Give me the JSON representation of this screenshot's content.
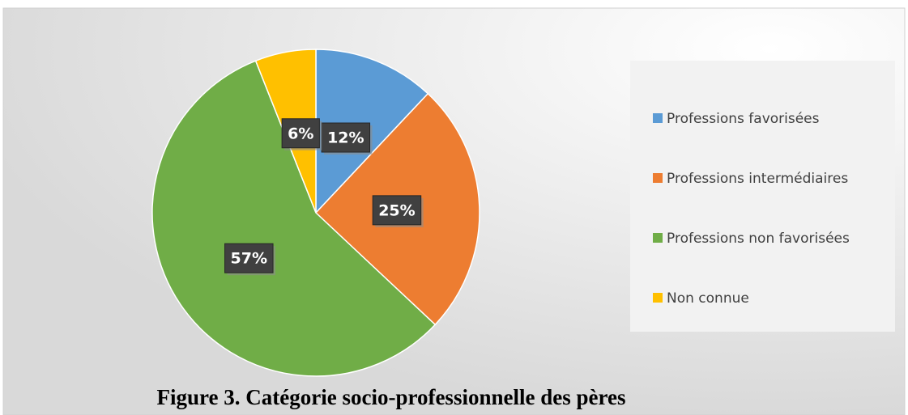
{
  "chart_data": {
    "type": "pie",
    "title": "Figure 3. Catégorie socio-professionnelle des pères",
    "categories": [
      "Professions favorisées",
      "Professions intermédiaires",
      "Professions non favorisées",
      "Non connue"
    ],
    "values": [
      12,
      25,
      57,
      6
    ],
    "value_labels": [
      "12%",
      "25%",
      "57%",
      "6%"
    ],
    "colors": [
      "#5b9bd5",
      "#ed7d31",
      "#70ad47",
      "#ffc000"
    ],
    "legend": "right"
  }
}
